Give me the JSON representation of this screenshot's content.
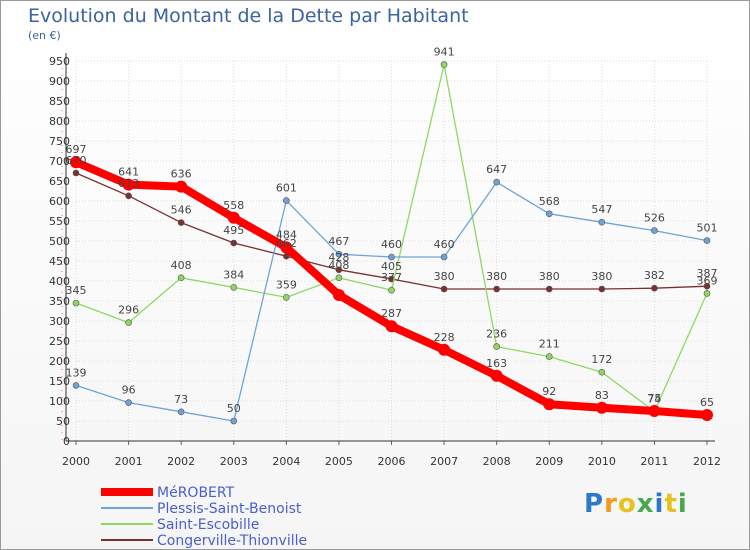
{
  "title": "Evolution du Montant de la Dette par Habitant",
  "unit": "(en €)",
  "logo": "Proxiti",
  "chart_data": {
    "type": "line",
    "x": [
      "2000",
      "2001",
      "2002",
      "2003",
      "2004",
      "2005",
      "2006",
      "2007",
      "2008",
      "2009",
      "2010",
      "2011",
      "2012"
    ],
    "y_ticks": [
      0,
      50,
      100,
      150,
      200,
      250,
      300,
      350,
      400,
      450,
      500,
      550,
      600,
      650,
      700,
      750,
      800,
      850,
      900,
      950
    ],
    "ylim": [
      0,
      950
    ],
    "grid": true,
    "legend": "bottom-left",
    "series": [
      {
        "name": "MéROBERT",
        "color": "#ff0000",
        "values": [
          697,
          641,
          636,
          558,
          484,
          365,
          287,
          228,
          163,
          92,
          83,
          75,
          65
        ],
        "labels": [
          "697",
          "641",
          "636",
          "558",
          "484",
          "",
          "287",
          "228",
          "163",
          "92",
          "83",
          "75",
          "65"
        ]
      },
      {
        "name": "Plessis-Saint-Benoist",
        "color": "#6fa3d8",
        "values": [
          139,
          96,
          73,
          50,
          601,
          467,
          460,
          460,
          647,
          568,
          547,
          526,
          501
        ],
        "labels": [
          "139",
          "96",
          "73",
          "50",
          "601",
          "467",
          "460",
          "460",
          "647",
          "568",
          "547",
          "526",
          "501"
        ]
      },
      {
        "name": "Saint-Escobille",
        "color": "#8fd860",
        "values": [
          345,
          296,
          408,
          384,
          359,
          408,
          377,
          941,
          236,
          211,
          172,
          74,
          369
        ],
        "labels": [
          "345",
          "296",
          "408",
          "384",
          "359",
          "408",
          "377",
          "941",
          "236",
          "211",
          "172",
          "74",
          "369"
        ]
      },
      {
        "name": "Congerville-Thionville",
        "color": "#7a3030",
        "values": [
          670,
          613,
          546,
          495,
          462,
          428,
          405,
          380,
          380,
          380,
          380,
          382,
          387
        ],
        "labels": [
          "670",
          "613",
          "546",
          "495",
          "462",
          "428",
          "405",
          "380",
          "380",
          "380",
          "380",
          "382",
          "387"
        ]
      }
    ]
  }
}
